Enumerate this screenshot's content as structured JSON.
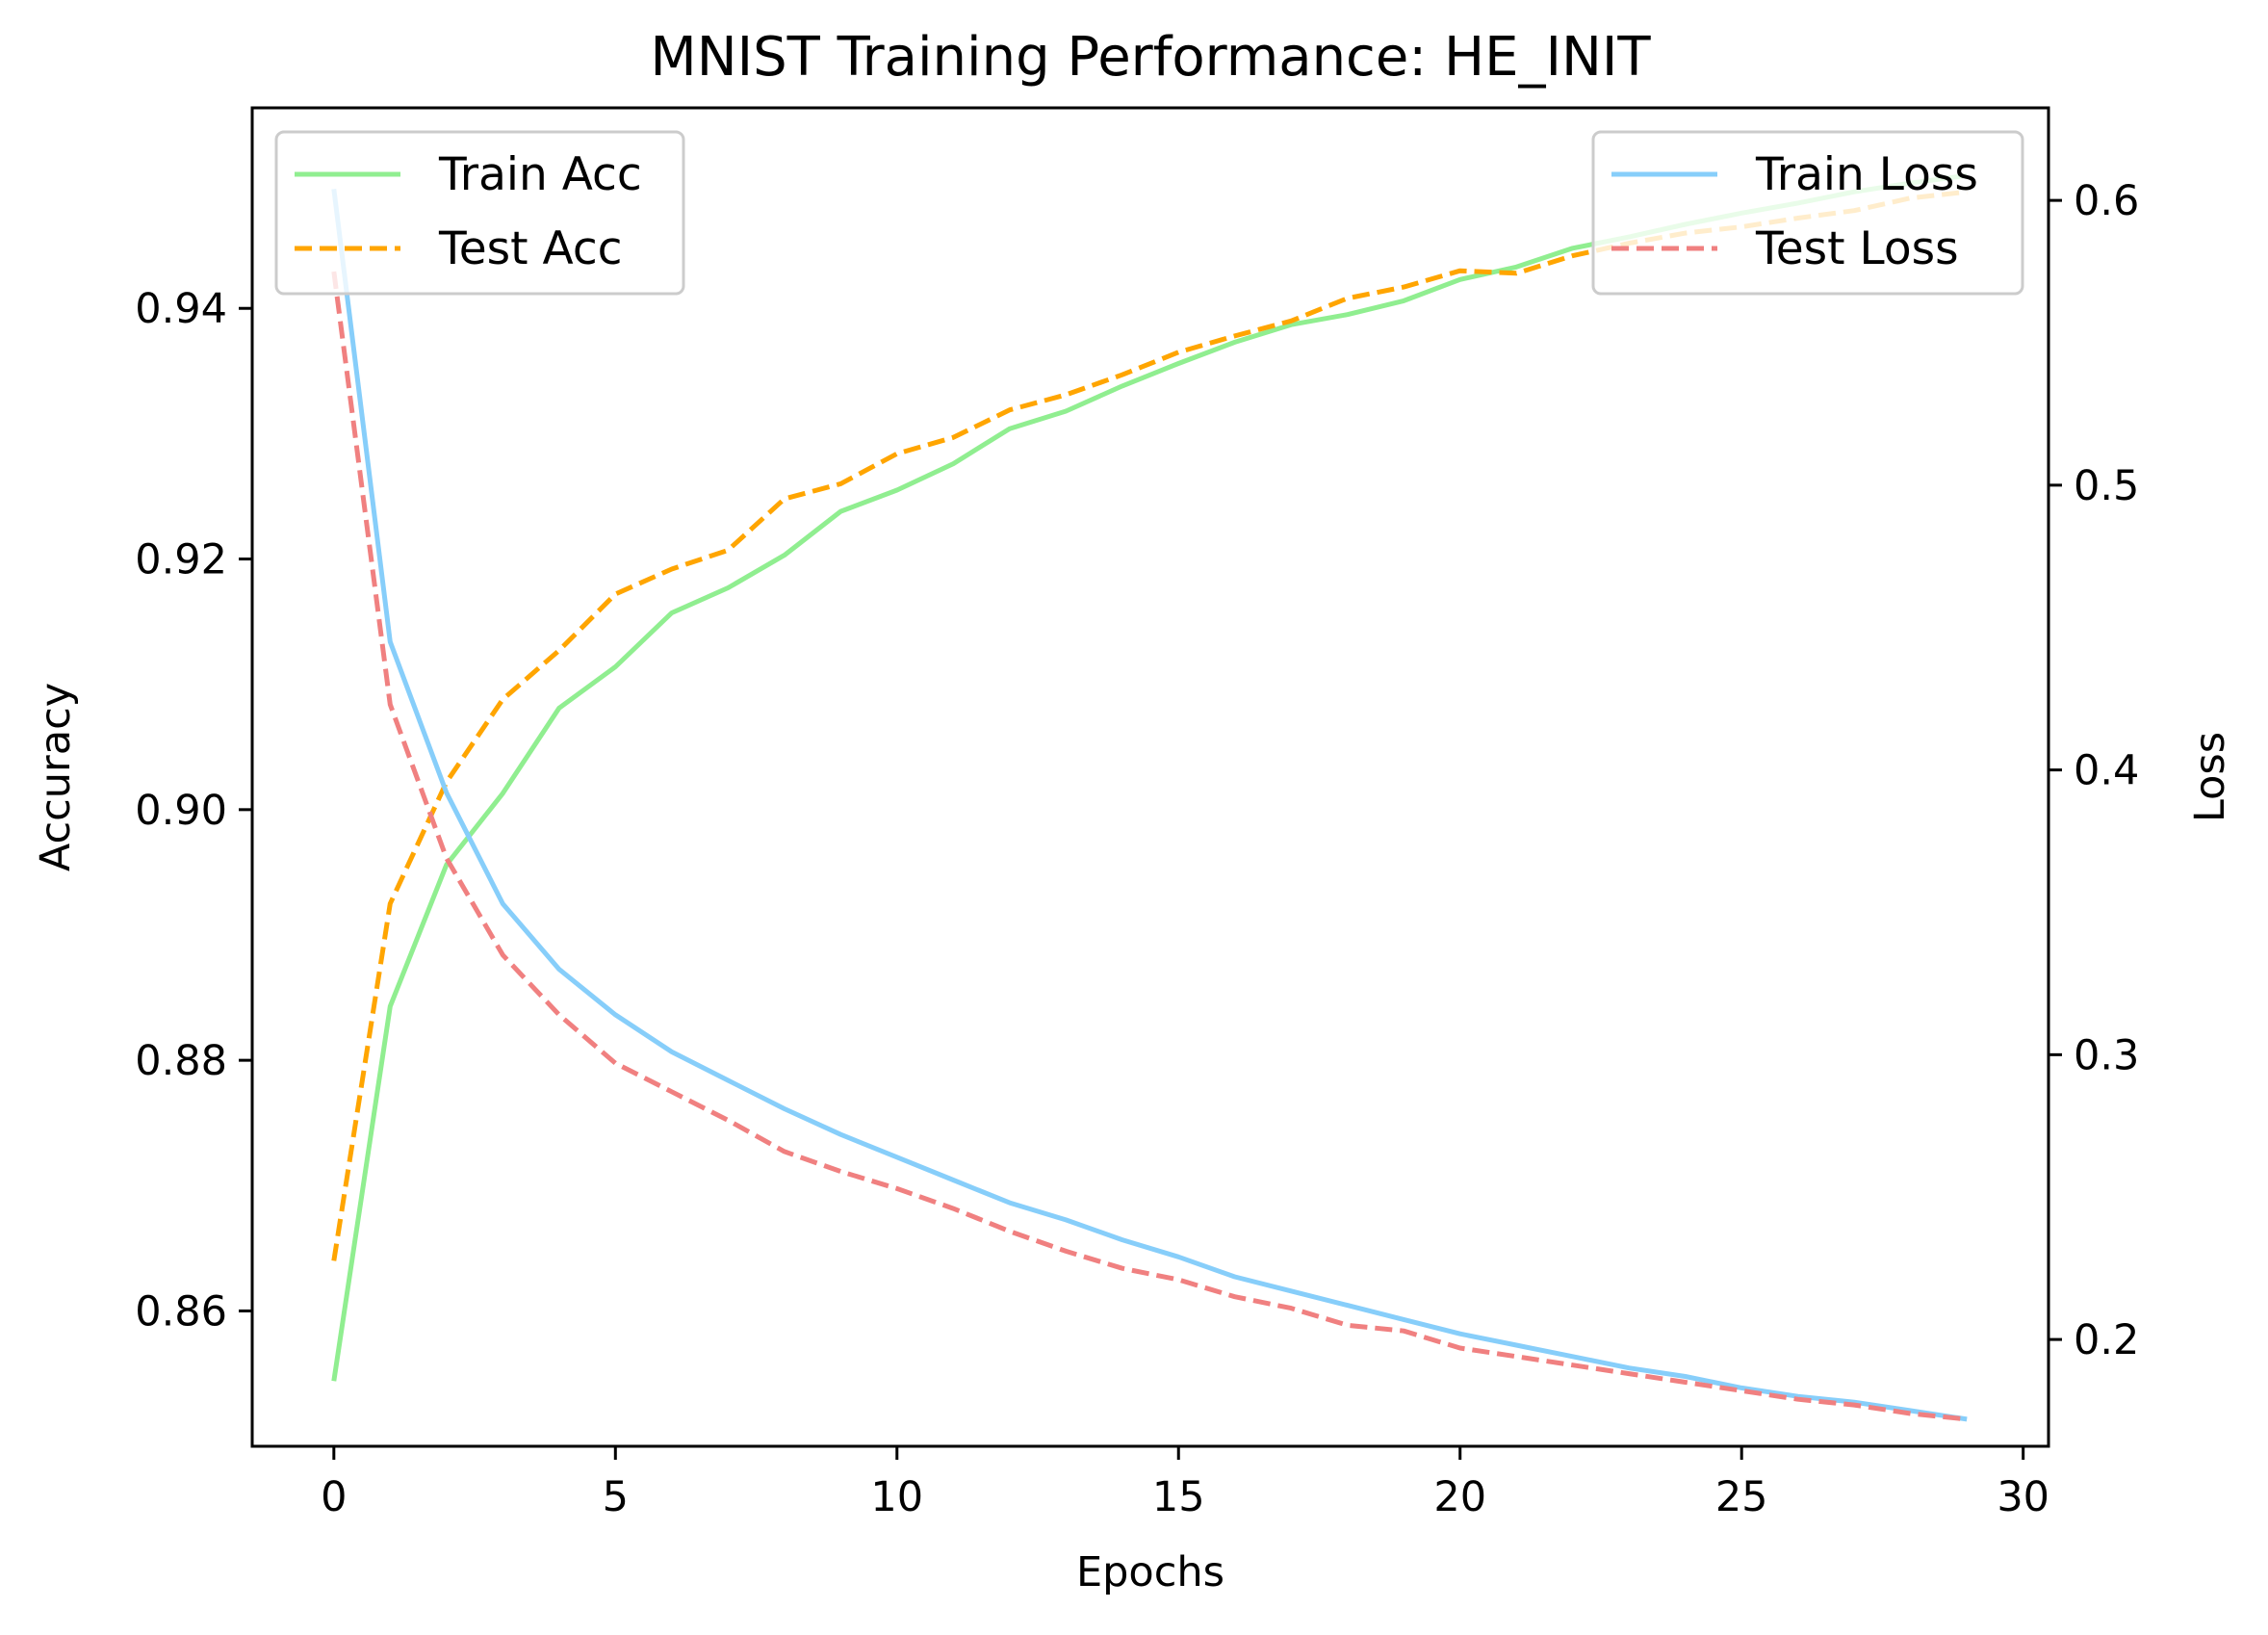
{
  "chart_data": {
    "type": "line",
    "title": "MNIST Training Performance: HE_INIT",
    "xlabel": "Epochs",
    "ylabel_left": "Accuracy",
    "ylabel_right": "Loss",
    "xlim": [
      -1.45,
      30.45
    ],
    "ylim_left": [
      0.8492,
      0.956
    ],
    "ylim_right": [
      0.1625,
      0.6325
    ],
    "x_ticks": [
      0,
      5,
      10,
      15,
      20,
      25,
      30
    ],
    "y_left_ticks": [
      0.86,
      0.88,
      0.9,
      0.92,
      0.94
    ],
    "y_right_ticks": [
      0.2,
      0.3,
      0.4,
      0.5,
      0.6
    ],
    "grid": false,
    "x": [
      0,
      1,
      2,
      3,
      4,
      5,
      6,
      7,
      8,
      9,
      10,
      11,
      12,
      13,
      14,
      15,
      16,
      17,
      18,
      19,
      20,
      21,
      22,
      23,
      24,
      25,
      26,
      27,
      28,
      29
    ],
    "series": [
      {
        "name": "Train Acc",
        "axis": "left",
        "color": "#90EE90",
        "dash": "solid",
        "values": [
          0.8544,
          0.8843,
          0.8956,
          0.9013,
          0.9081,
          0.9114,
          0.9157,
          0.9177,
          0.9203,
          0.9238,
          0.9255,
          0.9276,
          0.9304,
          0.9318,
          0.9338,
          0.9356,
          0.9373,
          0.9387,
          0.9395,
          0.9406,
          0.9423,
          0.9433,
          0.9448,
          0.9457,
          0.9467,
          0.9476,
          0.9484,
          0.9493,
          0.95,
          0.9506
        ]
      },
      {
        "name": "Test Acc",
        "axis": "left",
        "color": "#FFA500",
        "dash": "dashed",
        "values": [
          0.864,
          0.8925,
          0.9022,
          0.9088,
          0.9127,
          0.9172,
          0.9192,
          0.9207,
          0.9248,
          0.926,
          0.9284,
          0.9297,
          0.9319,
          0.9331,
          0.9347,
          0.9365,
          0.9378,
          0.939,
          0.9408,
          0.9417,
          0.943,
          0.9428,
          0.9442,
          0.9452,
          0.946,
          0.9465,
          0.9472,
          0.9478,
          0.9488,
          0.9493
        ]
      },
      {
        "name": "Train Loss",
        "axis": "right",
        "color": "#87CEFA",
        "dash": "solid",
        "values": [
          0.604,
          0.445,
          0.392,
          0.353,
          0.33,
          0.314,
          0.301,
          0.291,
          0.281,
          0.272,
          0.264,
          0.256,
          0.248,
          0.242,
          0.235,
          0.229,
          0.222,
          0.217,
          0.212,
          0.207,
          0.202,
          0.198,
          0.194,
          0.19,
          0.187,
          0.183,
          0.18,
          0.178,
          0.175,
          0.172
        ]
      },
      {
        "name": "Test Loss",
        "axis": "right",
        "color": "#F08080",
        "dash": "dashed",
        "values": [
          0.575,
          0.423,
          0.369,
          0.335,
          0.314,
          0.297,
          0.287,
          0.277,
          0.266,
          0.259,
          0.253,
          0.246,
          0.238,
          0.231,
          0.225,
          0.221,
          0.215,
          0.211,
          0.205,
          0.203,
          0.197,
          0.194,
          0.191,
          0.188,
          0.185,
          0.182,
          0.179,
          0.177,
          0.174,
          0.172
        ]
      }
    ],
    "legend_left": {
      "position": "upper left",
      "entries": [
        "Train Acc",
        "Test Acc"
      ]
    },
    "legend_right": {
      "position": "upper right",
      "entries": [
        "Train Loss",
        "Test Loss"
      ]
    }
  }
}
